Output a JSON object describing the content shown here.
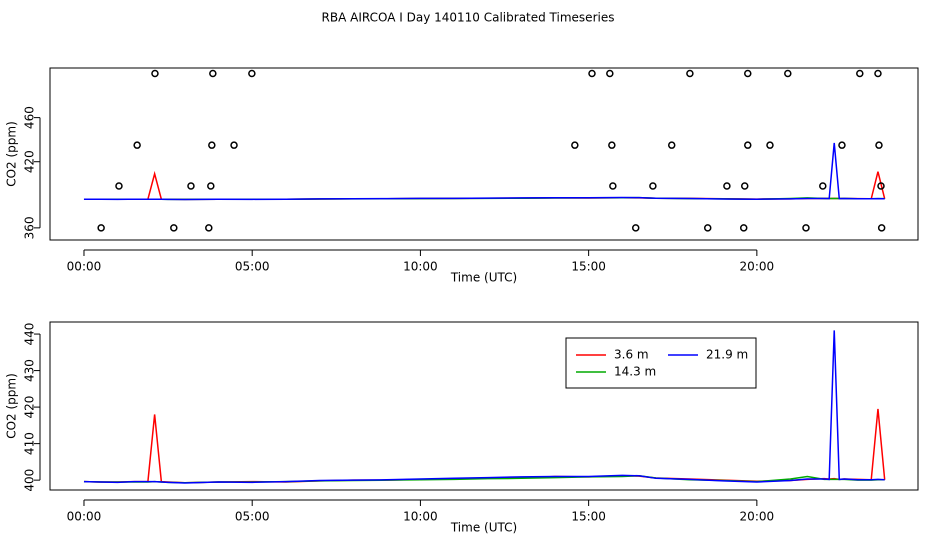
{
  "title": "RBA AIRCOA I  Day 140110  Calibrated Timeseries",
  "chart_data": [
    {
      "type": "line",
      "xlabel": "Time (UTC)",
      "ylabel": "CO2 (ppm)",
      "xlim": [
        -1.01,
        24.79
      ],
      "ylim": [
        349,
        505
      ],
      "xticks": [
        {
          "value": 0,
          "label": "00:00"
        },
        {
          "value": 5,
          "label": "05:00"
        },
        {
          "value": 10,
          "label": "10:00"
        },
        {
          "value": 15,
          "label": "15:00"
        },
        {
          "value": 20,
          "label": "20:00"
        }
      ],
      "yticks": [
        360,
        420,
        460
      ],
      "series": [
        {
          "color": "#ff0000",
          "style": "line",
          "x": [
            0,
            0.5,
            1,
            1.5,
            1.9,
            2.1,
            2.3,
            2.5,
            3,
            4,
            5,
            6,
            7,
            8,
            9,
            10,
            11,
            12,
            13,
            14,
            15,
            16,
            16.5,
            17,
            18,
            19,
            20,
            21,
            21.5,
            22,
            22.15,
            22.3,
            22.45,
            22.6,
            23,
            23.4,
            23.6,
            23.8
          ],
          "values": [
            386,
            386,
            386,
            386,
            386,
            409,
            386,
            386,
            385.8,
            386,
            386,
            386,
            386.2,
            386.4,
            386.4,
            386.6,
            386.7,
            386.9,
            387,
            387.2,
            387.1,
            387.3,
            387.2,
            386.9,
            386.7,
            386.4,
            386.1,
            386.3,
            386.6,
            386.7,
            386.6,
            386.7,
            386.6,
            386.6,
            386.5,
            386.4,
            411,
            386.4
          ]
        },
        {
          "color": "#00aa00",
          "style": "line",
          "x": [
            0,
            0.5,
            1,
            1.5,
            1.9,
            2.1,
            2.3,
            2.5,
            3,
            4,
            5,
            6,
            7,
            8,
            9,
            10,
            11,
            12,
            13,
            14,
            15,
            16,
            16.5,
            17,
            18,
            19,
            20,
            21,
            21.5,
            22,
            22.15,
            22.3,
            22.45,
            22.6,
            23,
            23.4,
            23.6,
            23.8
          ],
          "values": [
            386,
            386,
            386,
            386,
            386,
            386,
            386,
            385.9,
            385.8,
            386,
            386,
            386,
            386.2,
            386.3,
            386.4,
            386.5,
            386.6,
            386.8,
            386.9,
            387.1,
            387.2,
            387.3,
            387.4,
            386.9,
            386.5,
            386.3,
            386,
            386.6,
            387.2,
            386.6,
            386.6,
            386.6,
            386.6,
            386.6,
            386.4,
            386.4,
            386.5,
            386.5
          ]
        },
        {
          "color": "#0000ff",
          "style": "line",
          "x": [
            0,
            0.5,
            1,
            1.5,
            1.9,
            2.1,
            2.3,
            2.5,
            3,
            4,
            5,
            6,
            7,
            8,
            9,
            10,
            11,
            12,
            13,
            14,
            15,
            16,
            16.5,
            17,
            18,
            19,
            20,
            21,
            21.5,
            22,
            22.15,
            22.3,
            22.45,
            22.6,
            23,
            23.4,
            23.6,
            23.8
          ],
          "values": [
            386,
            386,
            385.9,
            386,
            386,
            386,
            386,
            385.9,
            385.7,
            386,
            385.9,
            386,
            386.3,
            386.4,
            386.5,
            386.7,
            386.8,
            387,
            387.2,
            387.3,
            387.3,
            387.5,
            387.4,
            386.9,
            386.6,
            386.2,
            386,
            386.3,
            386.6,
            386.6,
            386.5,
            437,
            386.5,
            386.6,
            386.4,
            386.4,
            386.5,
            386.4
          ]
        },
        {
          "color": "#000000",
          "style": "points",
          "x": [
            2.11,
            3.83,
            4.99,
            15.1,
            15.63,
            18.01,
            19.73,
            20.92,
            23.06,
            23.6,
            1.58,
            3.8,
            4.46,
            14.59,
            15.69,
            17.47,
            19.73,
            20.39,
            22.53,
            23.63,
            1.04,
            3.18,
            3.77,
            15.72,
            16.91,
            19.11,
            19.64,
            21.96,
            23.69,
            0.51,
            2.67,
            3.71,
            16.4,
            18.54,
            19.61,
            21.46,
            23.71
          ],
          "values": [
            500,
            500,
            500,
            500,
            500,
            500,
            500,
            500,
            500,
            500,
            435,
            435,
            435,
            435,
            435,
            435,
            435,
            435,
            435,
            435,
            398,
            398,
            398,
            398,
            398,
            398,
            398,
            398,
            398,
            360,
            360,
            360,
            360,
            360,
            360,
            360,
            360
          ]
        }
      ]
    },
    {
      "type": "line",
      "xlabel": "Time (UTC)",
      "ylabel": "CO2 (ppm)",
      "xlim": [
        -1.01,
        24.79
      ],
      "ylim": [
        397.3,
        443.3
      ],
      "xticks": [
        {
          "value": 0,
          "label": "00:00"
        },
        {
          "value": 5,
          "label": "05:00"
        },
        {
          "value": 10,
          "label": "10:00"
        },
        {
          "value": 15,
          "label": "15:00"
        },
        {
          "value": 20,
          "label": "20:00"
        }
      ],
      "yticks": [
        400,
        410,
        420,
        430,
        440
      ],
      "legend": "top-right",
      "series": [
        {
          "name": "3.6 m",
          "color": "#ff0000",
          "x": [
            0,
            0.5,
            1,
            1.5,
            1.9,
            2.1,
            2.3,
            2.5,
            3,
            4,
            5,
            6,
            7,
            8,
            9,
            10,
            11,
            12,
            13,
            14,
            15,
            16,
            16.5,
            17,
            18,
            19,
            20,
            21,
            21.5,
            22,
            22.15,
            22.3,
            22.45,
            22.6,
            23,
            23.4,
            23.6,
            23.8
          ],
          "values": [
            399.6,
            399.5,
            399.5,
            399.6,
            399.6,
            418,
            399.6,
            399.5,
            399.3,
            399.5,
            399.6,
            399.5,
            399.8,
            400,
            400,
            400.2,
            400.3,
            400.5,
            400.6,
            401,
            400.9,
            401.2,
            401.1,
            400.6,
            400.3,
            400,
            399.7,
            399.9,
            400.2,
            400.4,
            400.3,
            400.4,
            400.2,
            400.3,
            400.2,
            400.1,
            419.5,
            400.1
          ]
        },
        {
          "name": "14.3 m",
          "color": "#00aa00",
          "x": [
            0,
            0.5,
            1,
            1.5,
            1.9,
            2.1,
            2.3,
            2.5,
            3,
            4,
            5,
            6,
            7,
            8,
            9,
            10,
            11,
            12,
            13,
            14,
            15,
            16,
            16.5,
            17,
            18,
            19,
            20,
            21,
            21.5,
            22,
            22.15,
            22.3,
            22.45,
            22.6,
            23,
            23.4,
            23.6,
            23.8
          ],
          "values": [
            399.6,
            399.5,
            399.5,
            399.5,
            399.5,
            399.6,
            399.5,
            399.4,
            399.3,
            399.5,
            399.5,
            399.6,
            399.8,
            399.9,
            400,
            400.1,
            400.2,
            400.4,
            400.5,
            400.7,
            400.9,
            401,
            401.2,
            400.6,
            400.1,
            399.9,
            399.6,
            400.3,
            401,
            400.2,
            400.2,
            400.2,
            400.2,
            400.2,
            400,
            400,
            400.1,
            400.1
          ]
        },
        {
          "name": "21.9 m",
          "color": "#0000ff",
          "x": [
            0,
            0.5,
            1,
            1.5,
            1.9,
            2.1,
            2.3,
            2.5,
            3,
            4,
            5,
            6,
            7,
            8,
            9,
            10,
            11,
            12,
            13,
            14,
            15,
            16,
            16.5,
            17,
            18,
            19,
            20,
            21,
            21.5,
            22,
            22.15,
            22.3,
            22.45,
            22.6,
            23,
            23.4,
            23.6,
            23.8
          ],
          "values": [
            399.6,
            399.5,
            399.4,
            399.6,
            399.6,
            399.6,
            399.5,
            399.4,
            399.2,
            399.5,
            399.4,
            399.6,
            399.9,
            400,
            400.1,
            400.3,
            400.5,
            400.7,
            400.9,
            401,
            401,
            401.3,
            401.2,
            400.5,
            400.2,
            399.8,
            399.5,
            399.9,
            400.3,
            400.3,
            400.2,
            441,
            400.2,
            400.3,
            400.1,
            400.1,
            400.2,
            400.1
          ]
        }
      ]
    }
  ]
}
